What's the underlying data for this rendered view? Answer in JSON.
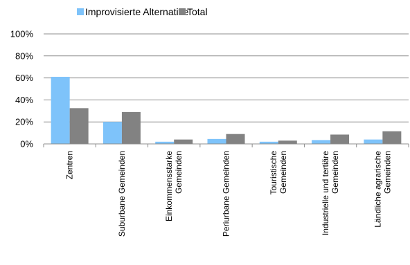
{
  "chart_data": {
    "type": "bar",
    "categories": [
      [
        "Zentren"
      ],
      [
        "Suburbane Gemeinden"
      ],
      [
        "Einkommensstarke",
        "Gemeinden"
      ],
      [
        "Periurbane Gemeinden"
      ],
      [
        "Touristische",
        "Gemeinden"
      ],
      [
        "Industrielle und tertiäre",
        "Gemeinden"
      ],
      [
        "Ländliche agrarische",
        "Gemeinden"
      ]
    ],
    "series": [
      {
        "name": "Improvisierte Alternative",
        "color": "#7EC3FA",
        "values": [
          61,
          20,
          2,
          4.5,
          2,
          3.5,
          4
        ]
      },
      {
        "name": "Total",
        "color": "#828282",
        "values": [
          32.5,
          29,
          4,
          9,
          3,
          8.5,
          11.5
        ]
      }
    ],
    "ylim": [
      0,
      100
    ],
    "yticks": [
      0,
      20,
      40,
      60,
      80,
      100
    ],
    "ytick_labels": [
      "0%",
      "20%",
      "40%",
      "60%",
      "80%",
      "100%"
    ],
    "grid": true,
    "legend_position": "top",
    "gridline_color": "#8C8C8C",
    "axis_color": "#8C8C8C"
  }
}
